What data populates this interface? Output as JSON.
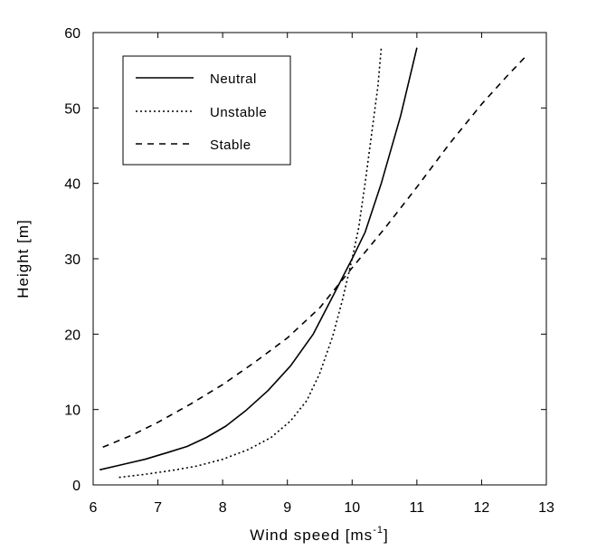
{
  "chart_data": {
    "type": "line",
    "xlabel": "Wind speed [ms",
    "xlabel_sup": "-1",
    "xlabel_end": "]",
    "ylabel": "Height [m]",
    "xlim": [
      6,
      13
    ],
    "ylim": [
      0,
      60
    ],
    "xticks": [
      6,
      7,
      8,
      9,
      10,
      11,
      12,
      13
    ],
    "yticks": [
      0,
      10,
      20,
      30,
      40,
      50,
      60
    ],
    "legend_position": "top-left",
    "grid": false,
    "series": [
      {
        "name": "Neutral",
        "dash": "solid",
        "x": [
          6.1,
          6.45,
          6.8,
          7.15,
          7.45,
          7.75,
          8.05,
          8.35,
          8.7,
          9.05,
          9.4,
          9.7,
          10.0,
          10.2,
          10.45,
          10.75,
          11.0
        ],
        "y": [
          2,
          2.7,
          3.4,
          4.3,
          5.1,
          6.3,
          7.8,
          9.8,
          12.5,
          15.8,
          20,
          25,
          30,
          33.5,
          40,
          49,
          58
        ]
      },
      {
        "name": "Unstable",
        "dash": "dotted",
        "x": [
          6.4,
          6.8,
          7.2,
          7.6,
          8.0,
          8.4,
          8.75,
          9.05,
          9.3,
          9.5,
          9.7,
          9.85,
          10.0,
          10.1,
          10.2,
          10.3,
          10.4,
          10.45
        ],
        "y": [
          1,
          1.4,
          1.9,
          2.5,
          3.4,
          4.7,
          6.3,
          8.5,
          11.2,
          14.8,
          19.7,
          24.5,
          30,
          34,
          40,
          46.5,
          53,
          58
        ]
      },
      {
        "name": "Stable",
        "dash": "dashed",
        "x": [
          6.15,
          6.6,
          7.0,
          7.5,
          8.0,
          8.5,
          9.0,
          9.5,
          10.0,
          10.5,
          11.0,
          11.5,
          12.0,
          12.4,
          12.7
        ],
        "y": [
          5,
          6.6,
          8.3,
          10.7,
          13.3,
          16.3,
          19.5,
          23.5,
          28.8,
          34,
          39.5,
          45.2,
          50.5,
          54.3,
          57
        ]
      }
    ]
  }
}
